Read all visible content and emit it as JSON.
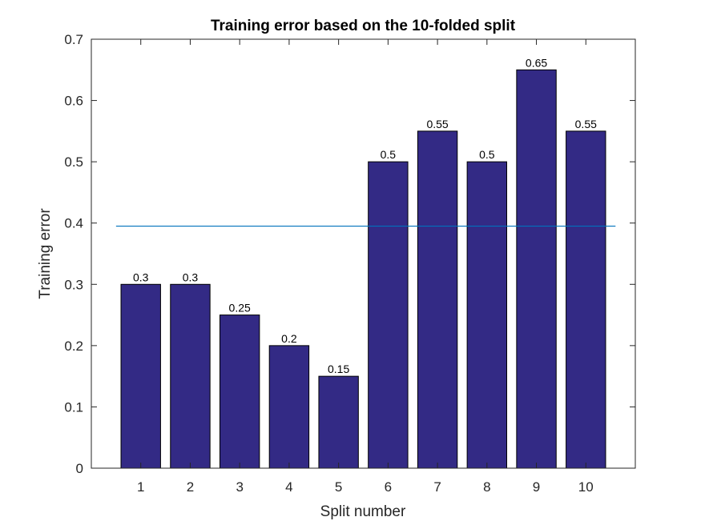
{
  "chart_data": {
    "type": "bar",
    "title": "Training error based on the 10-folded split",
    "xlabel": "Split number",
    "ylabel": "Training error",
    "categories": [
      "1",
      "2",
      "3",
      "4",
      "5",
      "6",
      "7",
      "8",
      "9",
      "10"
    ],
    "values": [
      0.3,
      0.3,
      0.25,
      0.2,
      0.15,
      0.5,
      0.55,
      0.5,
      0.65,
      0.55
    ],
    "data_labels": [
      "0.3",
      "0.3",
      "0.25",
      "0.2",
      "0.15",
      "0.5",
      "0.55",
      "0.5",
      "0.65",
      "0.55"
    ],
    "xlim": [
      0,
      11
    ],
    "ylim": [
      0,
      0.7
    ],
    "yticks": [
      0,
      0.1,
      0.2,
      0.3,
      0.4,
      0.5,
      0.6,
      0.7
    ],
    "ytick_labels": [
      "0",
      "0.1",
      "0.2",
      "0.3",
      "0.4",
      "0.5",
      "0.6",
      "0.7"
    ],
    "reference_line": {
      "y": 0.395,
      "x_range": [
        0.5,
        10.6
      ]
    },
    "grid": false,
    "colors": {
      "bar": "#332a85",
      "reference_line": "#0072bd",
      "axis": "#262626"
    }
  }
}
